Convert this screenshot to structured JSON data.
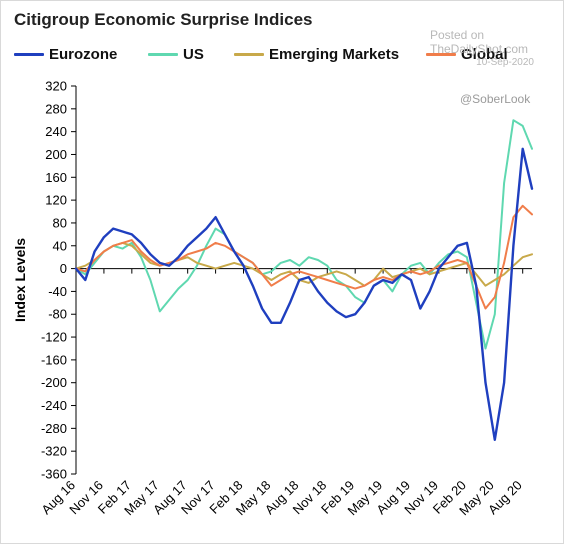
{
  "watermark": {
    "line1": "Posted on",
    "line2": "TheDailyShot.com",
    "date": "10-Sep-2020",
    "handle": "@SoberLook"
  },
  "chart_data": {
    "type": "line",
    "title": "Citigroup Economic Surprise Indices",
    "xlabel": "",
    "ylabel": "Index Levels",
    "ylim": [
      -360,
      320
    ],
    "yticks": [
      320,
      280,
      240,
      200,
      160,
      120,
      80,
      40,
      0,
      -40,
      -80,
      -120,
      -160,
      -200,
      -240,
      -280,
      -320,
      -360
    ],
    "xrange": [
      "2016-08",
      "2020-09"
    ],
    "xtick_labels": [
      "Aug 16",
      "Nov 16",
      "Feb 17",
      "May 17",
      "Aug 17",
      "Nov 17",
      "Feb 18",
      "May 18",
      "Aug 18",
      "Nov 18",
      "Feb 19",
      "May 19",
      "Aug 19",
      "Nov 19",
      "Feb 20",
      "May 20",
      "Aug 20"
    ],
    "xtick_dates": [
      "2016-08",
      "2016-11",
      "2017-02",
      "2017-05",
      "2017-08",
      "2017-11",
      "2018-02",
      "2018-05",
      "2018-08",
      "2018-11",
      "2019-02",
      "2019-05",
      "2019-08",
      "2019-11",
      "2020-02",
      "2020-05",
      "2020-08"
    ],
    "grid": false,
    "legend_position": "top",
    "series": [
      {
        "name": "Eurozone",
        "color": "#1f3fbf",
        "points": [
          [
            "2016-08",
            0
          ],
          [
            "2016-09",
            -20
          ],
          [
            "2016-10",
            30
          ],
          [
            "2016-11",
            55
          ],
          [
            "2016-12",
            70
          ],
          [
            "2017-01",
            65
          ],
          [
            "2017-02",
            60
          ],
          [
            "2017-03",
            45
          ],
          [
            "2017-04",
            25
          ],
          [
            "2017-05",
            10
          ],
          [
            "2017-06",
            5
          ],
          [
            "2017-07",
            20
          ],
          [
            "2017-08",
            40
          ],
          [
            "2017-09",
            55
          ],
          [
            "2017-10",
            70
          ],
          [
            "2017-11",
            90
          ],
          [
            "2017-12",
            60
          ],
          [
            "2018-01",
            30
          ],
          [
            "2018-02",
            5
          ],
          [
            "2018-03",
            -30
          ],
          [
            "2018-04",
            -70
          ],
          [
            "2018-05",
            -95
          ],
          [
            "2018-06",
            -95
          ],
          [
            "2018-07",
            -60
          ],
          [
            "2018-08",
            -20
          ],
          [
            "2018-09",
            -15
          ],
          [
            "2018-10",
            -40
          ],
          [
            "2018-11",
            -60
          ],
          [
            "2018-12",
            -75
          ],
          [
            "2019-01",
            -85
          ],
          [
            "2019-02",
            -80
          ],
          [
            "2019-03",
            -60
          ],
          [
            "2019-04",
            -30
          ],
          [
            "2019-05",
            -20
          ],
          [
            "2019-06",
            -25
          ],
          [
            "2019-07",
            -10
          ],
          [
            "2019-08",
            -20
          ],
          [
            "2019-09",
            -70
          ],
          [
            "2019-10",
            -40
          ],
          [
            "2019-11",
            0
          ],
          [
            "2019-12",
            20
          ],
          [
            "2020-01",
            40
          ],
          [
            "2020-02",
            45
          ],
          [
            "2020-03",
            -30
          ],
          [
            "2020-04",
            -200
          ],
          [
            "2020-05",
            -300
          ],
          [
            "2020-06",
            -200
          ],
          [
            "2020-07",
            40
          ],
          [
            "2020-08",
            210
          ],
          [
            "2020-09",
            140
          ]
        ]
      },
      {
        "name": "US",
        "color": "#5fd8b0",
        "points": [
          [
            "2016-08",
            0
          ],
          [
            "2016-09",
            -10
          ],
          [
            "2016-10",
            10
          ],
          [
            "2016-11",
            30
          ],
          [
            "2016-12",
            40
          ],
          [
            "2017-01",
            35
          ],
          [
            "2017-02",
            45
          ],
          [
            "2017-03",
            20
          ],
          [
            "2017-04",
            -20
          ],
          [
            "2017-05",
            -75
          ],
          [
            "2017-06",
            -55
          ],
          [
            "2017-07",
            -35
          ],
          [
            "2017-08",
            -20
          ],
          [
            "2017-09",
            5
          ],
          [
            "2017-10",
            40
          ],
          [
            "2017-11",
            70
          ],
          [
            "2017-12",
            60
          ],
          [
            "2018-01",
            30
          ],
          [
            "2018-02",
            20
          ],
          [
            "2018-03",
            10
          ],
          [
            "2018-04",
            -10
          ],
          [
            "2018-05",
            -5
          ],
          [
            "2018-06",
            10
          ],
          [
            "2018-07",
            15
          ],
          [
            "2018-08",
            5
          ],
          [
            "2018-09",
            20
          ],
          [
            "2018-10",
            15
          ],
          [
            "2018-11",
            5
          ],
          [
            "2018-12",
            -20
          ],
          [
            "2019-01",
            -30
          ],
          [
            "2019-02",
            -50
          ],
          [
            "2019-03",
            -60
          ],
          [
            "2019-04",
            -30
          ],
          [
            "2019-05",
            -20
          ],
          [
            "2019-06",
            -40
          ],
          [
            "2019-07",
            -10
          ],
          [
            "2019-08",
            5
          ],
          [
            "2019-09",
            10
          ],
          [
            "2019-10",
            -10
          ],
          [
            "2019-11",
            10
          ],
          [
            "2019-12",
            25
          ],
          [
            "2020-01",
            30
          ],
          [
            "2020-02",
            20
          ],
          [
            "2020-03",
            -60
          ],
          [
            "2020-04",
            -140
          ],
          [
            "2020-05",
            -80
          ],
          [
            "2020-06",
            150
          ],
          [
            "2020-07",
            260
          ],
          [
            "2020-08",
            250
          ],
          [
            "2020-09",
            210
          ]
        ]
      },
      {
        "name": "Emerging Markets",
        "color": "#c8a94a",
        "points": [
          [
            "2016-08",
            0
          ],
          [
            "2016-09",
            5
          ],
          [
            "2016-10",
            15
          ],
          [
            "2016-11",
            30
          ],
          [
            "2016-12",
            40
          ],
          [
            "2017-01",
            45
          ],
          [
            "2017-02",
            40
          ],
          [
            "2017-03",
            25
          ],
          [
            "2017-04",
            10
          ],
          [
            "2017-05",
            5
          ],
          [
            "2017-06",
            10
          ],
          [
            "2017-07",
            15
          ],
          [
            "2017-08",
            20
          ],
          [
            "2017-09",
            10
          ],
          [
            "2017-10",
            5
          ],
          [
            "2017-11",
            0
          ],
          [
            "2017-12",
            5
          ],
          [
            "2018-01",
            10
          ],
          [
            "2018-02",
            5
          ],
          [
            "2018-03",
            0
          ],
          [
            "2018-04",
            -10
          ],
          [
            "2018-05",
            -20
          ],
          [
            "2018-06",
            -10
          ],
          [
            "2018-07",
            -5
          ],
          [
            "2018-08",
            -20
          ],
          [
            "2018-09",
            -25
          ],
          [
            "2018-10",
            -15
          ],
          [
            "2018-11",
            -10
          ],
          [
            "2018-12",
            -5
          ],
          [
            "2019-01",
            -10
          ],
          [
            "2019-02",
            -20
          ],
          [
            "2019-03",
            -30
          ],
          [
            "2019-04",
            -20
          ],
          [
            "2019-05",
            0
          ],
          [
            "2019-06",
            -15
          ],
          [
            "2019-07",
            -10
          ],
          [
            "2019-08",
            -5
          ],
          [
            "2019-09",
            0
          ],
          [
            "2019-10",
            -10
          ],
          [
            "2019-11",
            -5
          ],
          [
            "2019-12",
            0
          ],
          [
            "2020-01",
            5
          ],
          [
            "2020-02",
            10
          ],
          [
            "2020-03",
            -10
          ],
          [
            "2020-04",
            -30
          ],
          [
            "2020-05",
            -20
          ],
          [
            "2020-06",
            -10
          ],
          [
            "2020-07",
            5
          ],
          [
            "2020-08",
            20
          ],
          [
            "2020-09",
            25
          ]
        ]
      },
      {
        "name": "Global",
        "color": "#f07d4a",
        "points": [
          [
            "2016-08",
            0
          ],
          [
            "2016-09",
            -5
          ],
          [
            "2016-10",
            15
          ],
          [
            "2016-11",
            30
          ],
          [
            "2016-12",
            40
          ],
          [
            "2017-01",
            45
          ],
          [
            "2017-02",
            50
          ],
          [
            "2017-03",
            30
          ],
          [
            "2017-04",
            15
          ],
          [
            "2017-05",
            5
          ],
          [
            "2017-06",
            10
          ],
          [
            "2017-07",
            15
          ],
          [
            "2017-08",
            25
          ],
          [
            "2017-09",
            30
          ],
          [
            "2017-10",
            35
          ],
          [
            "2017-11",
            45
          ],
          [
            "2017-12",
            40
          ],
          [
            "2018-01",
            30
          ],
          [
            "2018-02",
            20
          ],
          [
            "2018-03",
            10
          ],
          [
            "2018-04",
            -10
          ],
          [
            "2018-05",
            -30
          ],
          [
            "2018-06",
            -20
          ],
          [
            "2018-07",
            -10
          ],
          [
            "2018-08",
            -5
          ],
          [
            "2018-09",
            -10
          ],
          [
            "2018-10",
            -15
          ],
          [
            "2018-11",
            -20
          ],
          [
            "2018-12",
            -25
          ],
          [
            "2019-01",
            -30
          ],
          [
            "2019-02",
            -35
          ],
          [
            "2019-03",
            -30
          ],
          [
            "2019-04",
            -20
          ],
          [
            "2019-05",
            -15
          ],
          [
            "2019-06",
            -20
          ],
          [
            "2019-07",
            -10
          ],
          [
            "2019-08",
            -5
          ],
          [
            "2019-09",
            -10
          ],
          [
            "2019-10",
            -5
          ],
          [
            "2019-11",
            5
          ],
          [
            "2019-12",
            10
          ],
          [
            "2020-01",
            15
          ],
          [
            "2020-02",
            10
          ],
          [
            "2020-03",
            -30
          ],
          [
            "2020-04",
            -70
          ],
          [
            "2020-05",
            -50
          ],
          [
            "2020-06",
            10
          ],
          [
            "2020-07",
            90
          ],
          [
            "2020-08",
            110
          ],
          [
            "2020-09",
            95
          ]
        ]
      }
    ]
  }
}
